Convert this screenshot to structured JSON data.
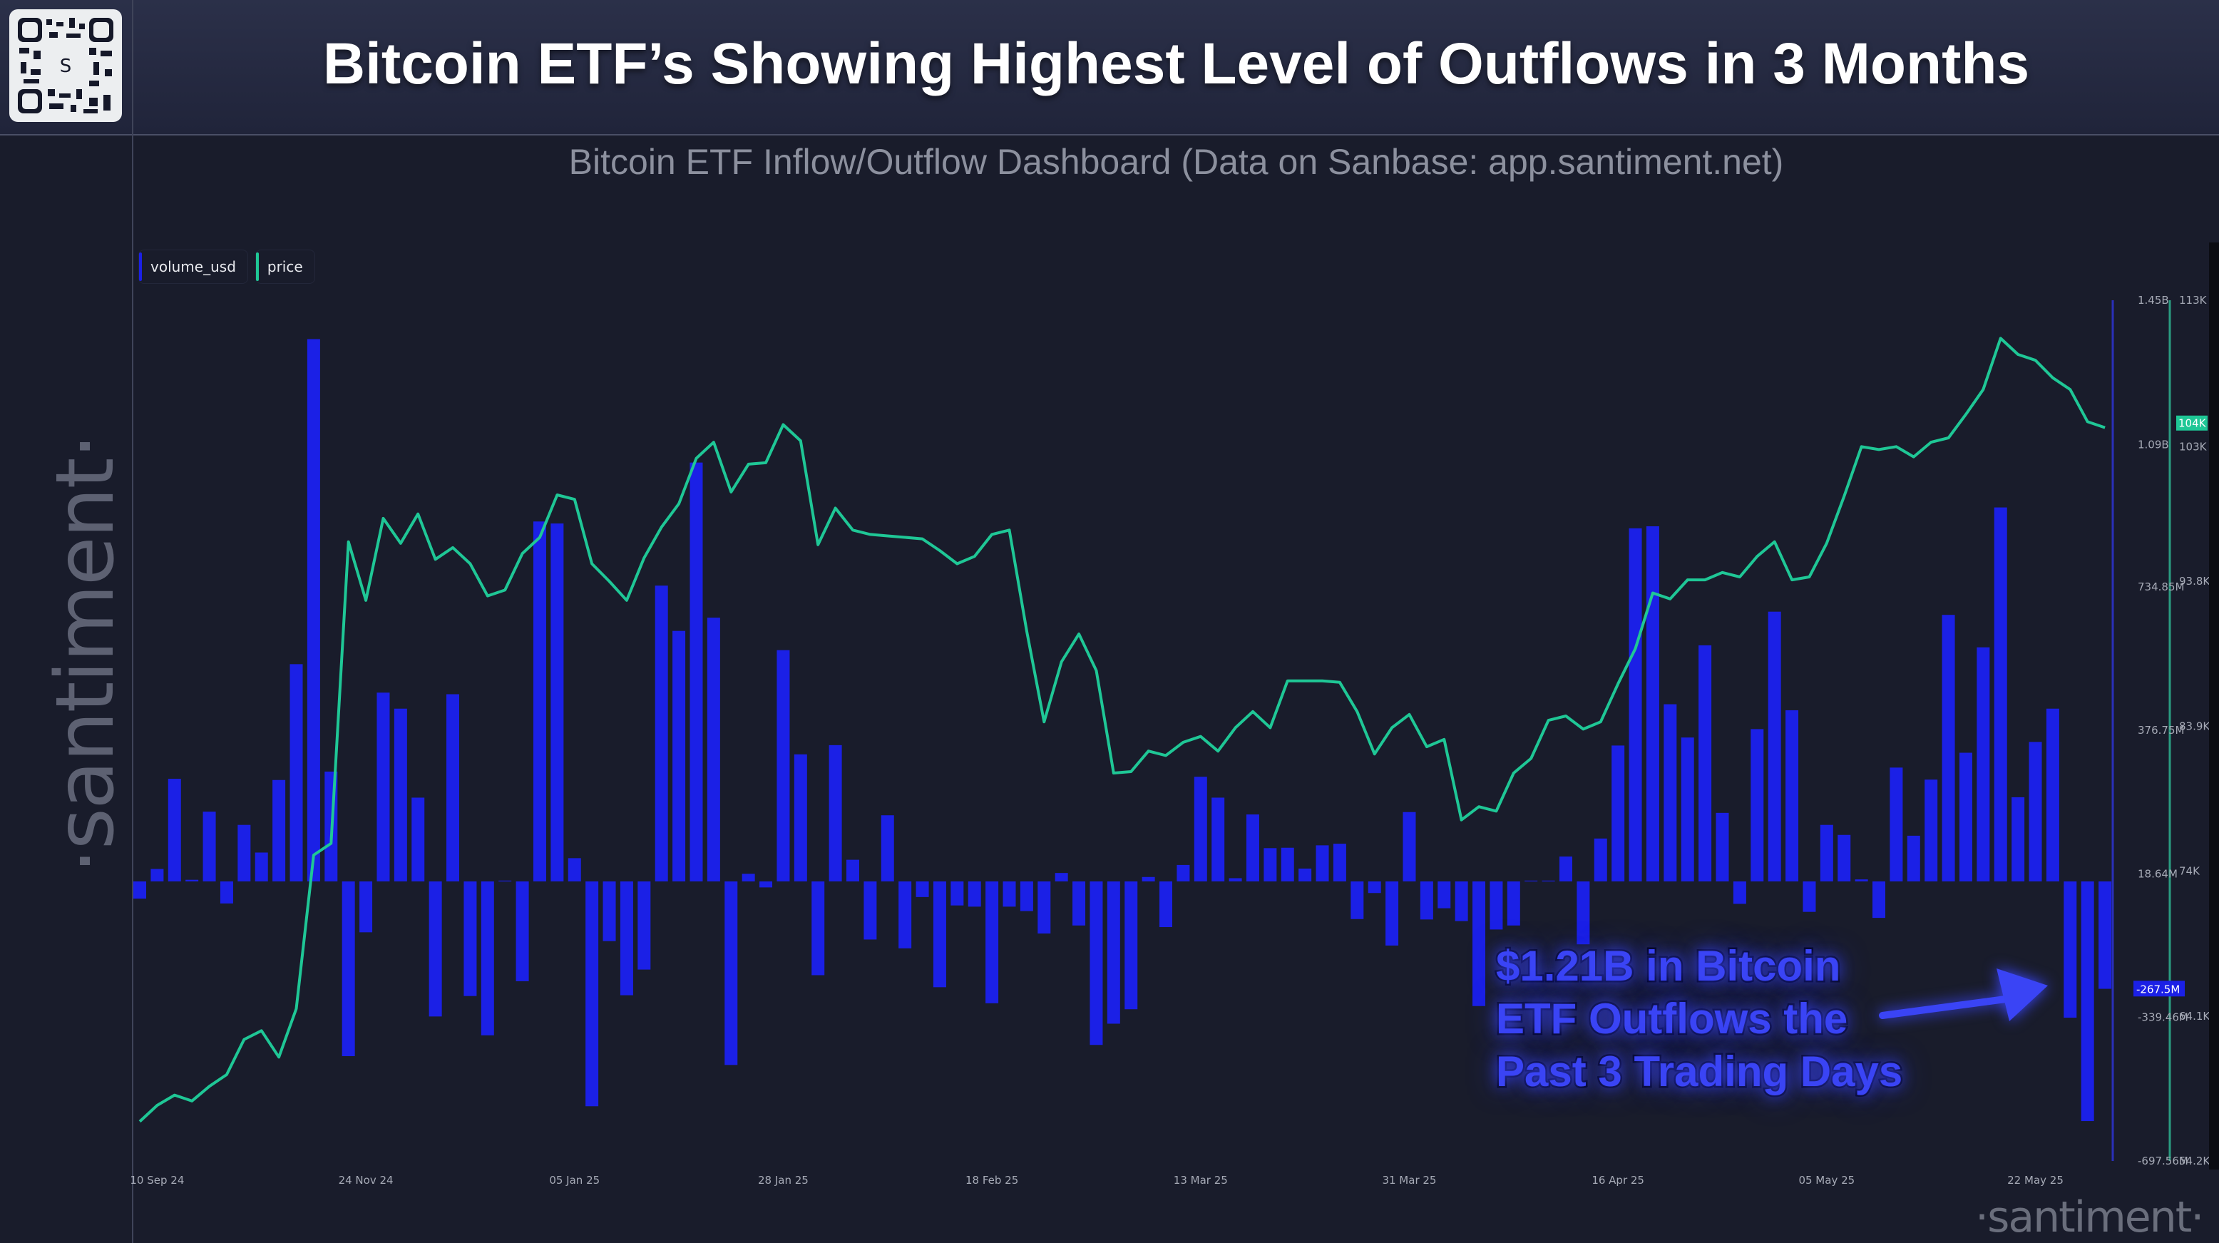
{
  "header": {
    "title": "Bitcoin ETF’s Showing Highest Level of Outflows in 3 Months",
    "subtitle": "Bitcoin ETF Inflow/Outflow Dashboard (Data on Sanbase: app.santiment.net)",
    "qr_logo_letter": "S"
  },
  "watermark": {
    "left": "·santiment·",
    "right": "·santiment·"
  },
  "legend": [
    {
      "label": "volume_usd",
      "color": "#1b20e6"
    },
    {
      "label": "price",
      "color": "#1fc796"
    }
  ],
  "annotation": {
    "lines": [
      "$1.21B in Bitcoin",
      "ETF Outflows the",
      "Past 3 Trading Days"
    ],
    "color": "#3a44f5"
  },
  "chart_data": {
    "type": "bar+line",
    "series": [
      {
        "name": "volume_usd",
        "type": "bar",
        "unit": "M USD",
        "color": "#1b20e6",
        "values": [
          -43,
          31,
          256,
          4,
          174,
          -55,
          141,
          72,
          253,
          542,
          1353,
          274,
          -436,
          -127,
          471,
          431,
          209,
          -337,
          467,
          -286,
          -384,
          2,
          -249,
          898,
          893,
          58,
          -561,
          -149,
          -284,
          -220,
          738,
          625,
          1045,
          658,
          -458,
          19,
          -15,
          577,
          317,
          -234,
          340,
          54,
          -145,
          165,
          -167,
          -39,
          -264,
          -60,
          -63,
          -304,
          -63,
          -74,
          -130,
          21,
          -110,
          -408,
          -355,
          -319,
          11,
          -114,
          41,
          261,
          209,
          8,
          167,
          83,
          84,
          32,
          90,
          94,
          -94,
          -29,
          -160,
          173,
          -95,
          -67,
          -99,
          -311,
          -120,
          -110,
          2,
          2,
          62,
          -157,
          107,
          339,
          881,
          886,
          442,
          359,
          589,
          171,
          -56,
          380,
          673,
          427,
          -76,
          141,
          116,
          5,
          -91,
          284,
          114,
          254,
          665,
          321,
          584,
          933,
          210,
          348,
          431,
          -340,
          -598,
          -268
        ]
      },
      {
        "name": "price",
        "type": "line",
        "unit": "K USD",
        "color": "#1fc796",
        "values": [
          56.9,
          58.0,
          58.7,
          58.3,
          59.3,
          60.1,
          62.5,
          63.1,
          61.3,
          64.6,
          75.1,
          75.9,
          96.5,
          92.5,
          98.1,
          96.4,
          98.4,
          95.3,
          96.1,
          95.0,
          92.8,
          93.2,
          95.7,
          96.8,
          99.7,
          99.4,
          95.0,
          93.8,
          92.5,
          95.4,
          97.5,
          99.1,
          102.2,
          103.3,
          99.9,
          101.8,
          101.9,
          104.5,
          103.4,
          96.3,
          98.8,
          97.3,
          97.0,
          96.9,
          96.8,
          96.7,
          95.9,
          95.0,
          95.5,
          97.0,
          97.3,
          90.4,
          84.2,
          88.3,
          90.2,
          87.7,
          80.7,
          80.8,
          82.2,
          81.9,
          82.8,
          83.2,
          82.2,
          83.8,
          84.9,
          83.8,
          87.0,
          87.0,
          87.0,
          86.9,
          84.9,
          82.0,
          83.8,
          84.7,
          82.5,
          83.0,
          77.5,
          78.4,
          78.1,
          80.7,
          81.7,
          84.3,
          84.6,
          83.7,
          84.2,
          86.8,
          89.2,
          93.0,
          92.6,
          93.9,
          93.9,
          94.4,
          94.1,
          95.5,
          96.5,
          93.9,
          94.1,
          96.4,
          99.6,
          103.0,
          102.8,
          103.0,
          102.3,
          103.3,
          103.6,
          105.2,
          106.9,
          110.4,
          109.3,
          108.9,
          107.7,
          106.9,
          104.7,
          104.3
        ]
      }
    ],
    "x_ticks": [
      {
        "index": 1,
        "label": "10 Sep 24"
      },
      {
        "index": 13,
        "label": "24 Nov 24"
      },
      {
        "index": 25,
        "label": "05 Jan 25"
      },
      {
        "index": 37,
        "label": "28 Jan 25"
      },
      {
        "index": 49,
        "label": "18 Feb 25"
      },
      {
        "index": 61,
        "label": "13 Mar 25"
      },
      {
        "index": 73,
        "label": "31 Mar 25"
      },
      {
        "index": 85,
        "label": "16 Apr 25"
      },
      {
        "index": 97,
        "label": "05 May 25"
      },
      {
        "index": 109,
        "label": "22 May 25"
      }
    ],
    "y_volume": {
      "range": [
        -697.56,
        1450
      ],
      "ticks": [
        {
          "value": 1450,
          "label": "1.45B"
        },
        {
          "value": 1090,
          "label": "1.09B"
        },
        {
          "value": 734.85,
          "label": "734.85M"
        },
        {
          "value": 376.75,
          "label": "376.75M"
        },
        {
          "value": 18.64,
          "label": "18.64M"
        },
        {
          "value": -339.46,
          "label": "-339.46M"
        },
        {
          "value": -697.56,
          "label": "-697.56M"
        }
      ],
      "current": {
        "value": -267.5,
        "label": "-267.5M"
      }
    },
    "y_price": {
      "range": [
        54.2,
        113
      ],
      "ticks": [
        {
          "value": 113,
          "label": "113K"
        },
        {
          "value": 103,
          "label": "103K"
        },
        {
          "value": 93.8,
          "label": "93.8K"
        },
        {
          "value": 83.9,
          "label": "83.9K"
        },
        {
          "value": 74,
          "label": "74K"
        },
        {
          "value": 64.1,
          "label": "64.1K"
        },
        {
          "value": 54.2,
          "label": "54.2K"
        }
      ],
      "current": {
        "value": 104,
        "label": "104K"
      }
    },
    "grid": false,
    "legend_position": "top-left"
  }
}
